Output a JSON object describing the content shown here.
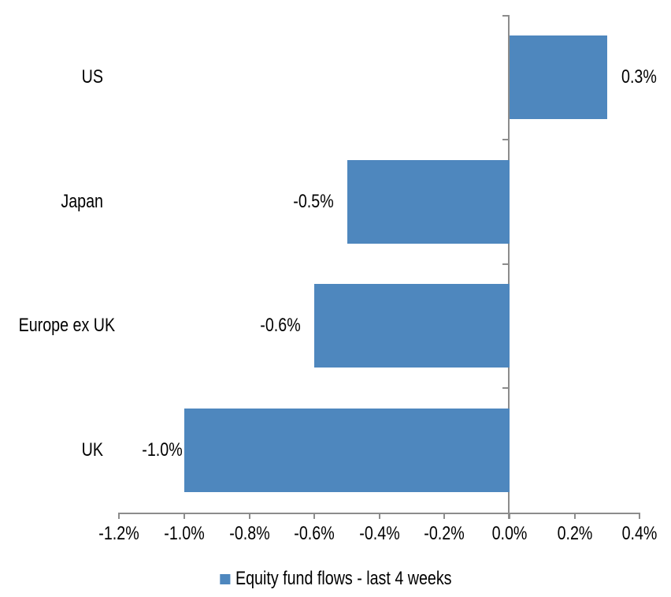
{
  "chart_data": {
    "type": "bar",
    "orientation": "horizontal",
    "title": "",
    "categories": [
      "US",
      "Japan",
      "Europe ex UK",
      "UK"
    ],
    "values": [
      0.3,
      -0.5,
      -0.6,
      -1.0
    ],
    "value_labels": [
      "0.3%",
      "-0.5%",
      "-0.6%",
      "-1.0%"
    ],
    "series": [
      {
        "name": "Equity fund flows - last 4 weeks",
        "values": [
          0.3,
          -0.5,
          -0.6,
          -1.0
        ]
      }
    ],
    "x_axis": {
      "tick_values": [
        -1.2,
        -1.0,
        -0.8,
        -0.6,
        -0.4,
        -0.2,
        0.0,
        0.2,
        0.4
      ],
      "tick_labels": [
        "-1.2%",
        "-1.0%",
        "-0.8%",
        "-0.6%",
        "-0.4%",
        "-0.2%",
        "0.0%",
        "0.2%",
        "0.4%"
      ],
      "range": [
        -1.2,
        0.4
      ],
      "unit": "%"
    },
    "legend": {
      "label": "Equity fund flows - last 4 weeks",
      "position": "bottom-center"
    },
    "colors": {
      "bar": "#4E87BE",
      "axis": "#8C8C8C",
      "text": "#000000",
      "background": "#FFFFFF"
    },
    "grid": false,
    "data_labels": "outside-end"
  }
}
